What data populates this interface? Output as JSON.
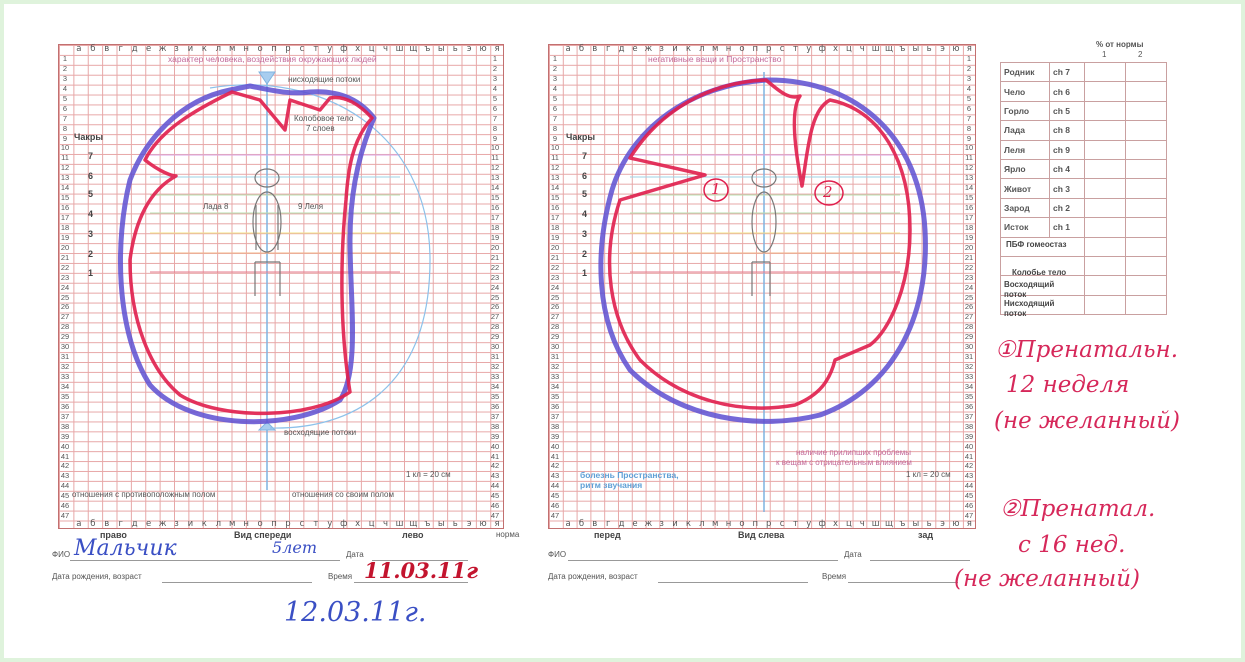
{
  "alphabet": [
    "а",
    "б",
    "в",
    "г",
    "д",
    "е",
    "ж",
    "з",
    "и",
    "к",
    "л",
    "м",
    "н",
    "о",
    "п",
    "р",
    "с",
    "т",
    "у",
    "ф",
    "х",
    "ц",
    "ч",
    "ш",
    "щ",
    "ъ",
    "ы",
    "ь",
    "э",
    "ю",
    "я"
  ],
  "left_chart": {
    "title": "характер человека, воздействия окружающих людей",
    "descending": "нисходящие потоки",
    "kolob_line1": "Колобовое тело",
    "kolob_line2": "7 слоев",
    "chakras_label": "Чакры",
    "lada": "Лада 8",
    "lelya": "9 Леля",
    "ascending": "восходящие потоки",
    "scale": "1 кл = 20 см",
    "relations_opposite": "отношения с противоположным полом",
    "relations_own": "отношения со своим полом",
    "right_side": "право",
    "view": "Вид спереди",
    "left_side": "лево",
    "fio_label": "ФИО",
    "date_label": "Дата",
    "birth_label": "Дата рождения, возраст",
    "time_label": "Время",
    "hand_name": "Мальчик",
    "hand_age": "5лет",
    "hand_date": "11.03.11г",
    "hand_date2": "12.03.11г."
  },
  "right_chart": {
    "title": "негативные вещи и Пространство",
    "chakras_label": "Чакры",
    "sticky_problems": "наличие прилипших проблемы",
    "negative_objects": "к вещам с отрицательным влиянием",
    "scale": "1 кл = 20 см",
    "space_disease": "болезнь Пространства,",
    "sound_rhythm": "ритм звучания",
    "front": "перед",
    "view": "Вид слева",
    "back": "зад",
    "norma": "норма",
    "fio_label": "ФИО",
    "date_label": "Дата",
    "birth_label": "Дата рождения, возраст",
    "time_label": "Время",
    "marker1": "1",
    "marker2": "2"
  },
  "chakra_numbers": [
    "7",
    "6",
    "5",
    "4",
    "3",
    "2",
    "1"
  ],
  "legend": {
    "header": "% от нормы",
    "col1": "1",
    "col2": "2",
    "rows": [
      {
        "name": "Родник",
        "ch": "ch 7"
      },
      {
        "name": "Чело",
        "ch": "ch 6"
      },
      {
        "name": "Горло",
        "ch": "ch 5"
      },
      {
        "name": "Лада",
        "ch": "ch 8"
      },
      {
        "name": "Леля",
        "ch": "ch 9"
      },
      {
        "name": "Ярло",
        "ch": "ch 4"
      },
      {
        "name": "Живот",
        "ch": "ch 3"
      },
      {
        "name": "Зарод",
        "ch": "ch 2"
      },
      {
        "name": "Исток",
        "ch": "ch 1"
      }
    ],
    "pbf": "ПБФ гомеостаз",
    "kolob": "Колобье тело",
    "asc1": "Восходящий",
    "asc2": "поток",
    "desc1": "Нисходящий",
    "desc2": "поток"
  },
  "notes": {
    "n1_line1": "①Пренатальн.",
    "n1_line2": "12 неделя",
    "n1_line3": "(не желанный)",
    "n2_line1": "②Пренатал.",
    "n2_line2": "с 16 нед.",
    "n2_line3": "(не желанный)"
  }
}
